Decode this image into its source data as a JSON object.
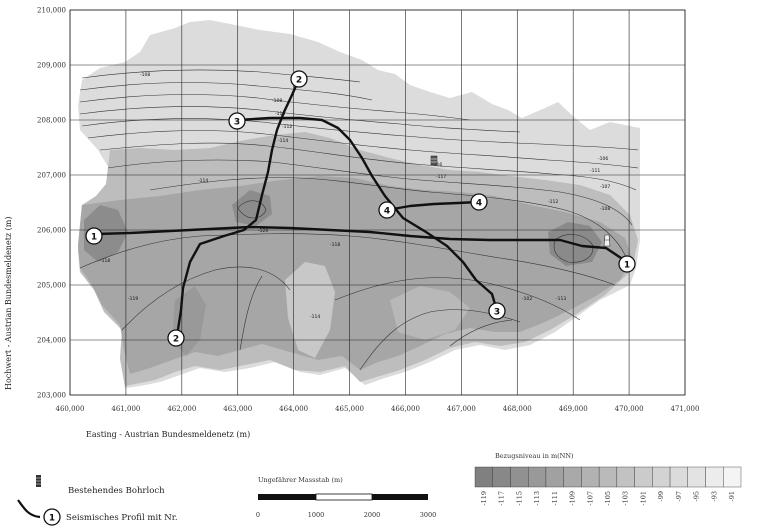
{
  "map": {
    "x_axis_title": "Easting - Austrian Bundesmeldenetz (m)",
    "y_axis_title": "Hochwert - Austrian Bundesmeldenetz (m)",
    "x_ticks": [
      "460,000",
      "461,000",
      "462,000",
      "463,000",
      "464,000",
      "465,000",
      "466,000",
      "467,000",
      "468,000",
      "469,000",
      "470,000",
      "471,000"
    ],
    "y_ticks": [
      "203,000",
      "204,000",
      "205,000",
      "206,000",
      "207,000",
      "208,000",
      "209,000",
      "210,000"
    ],
    "contour_labels": [
      "-108",
      "-108",
      "-110",
      "-112",
      "-114",
      "-114",
      "-116",
      "-117",
      "-118",
      "-118",
      "-119",
      "-120",
      "-112",
      "-111",
      "-106",
      "-107",
      "-108",
      "-102",
      "-113",
      "-114"
    ],
    "profiles": [
      {
        "id": "1",
        "label": "1"
      },
      {
        "id": "2",
        "label": "2"
      },
      {
        "id": "3",
        "label": "3"
      },
      {
        "id": "4",
        "label": "4"
      }
    ]
  },
  "legend": {
    "borehole_label": "Bestehendes Bohrloch",
    "profile_label": "Seismisches Profil mit Nr.",
    "profile_symbol_number": "1",
    "scale_title": "Ungefährer Massstab (m)",
    "scale_ticks": [
      "0",
      "1000",
      "2000",
      "3000"
    ],
    "colorbar_title": "Bezugsniveau in m(NN)",
    "colorbar_values": [
      "-119",
      "-117",
      "-115",
      "-113",
      "-111",
      "-109",
      "-107",
      "-105",
      "-103",
      "-101",
      "-99",
      "-97",
      "-95",
      "-93",
      "-91"
    ],
    "colors": {
      "darkest": "#808080",
      "lightest": "#f4f4f4",
      "line": "#111111"
    }
  }
}
